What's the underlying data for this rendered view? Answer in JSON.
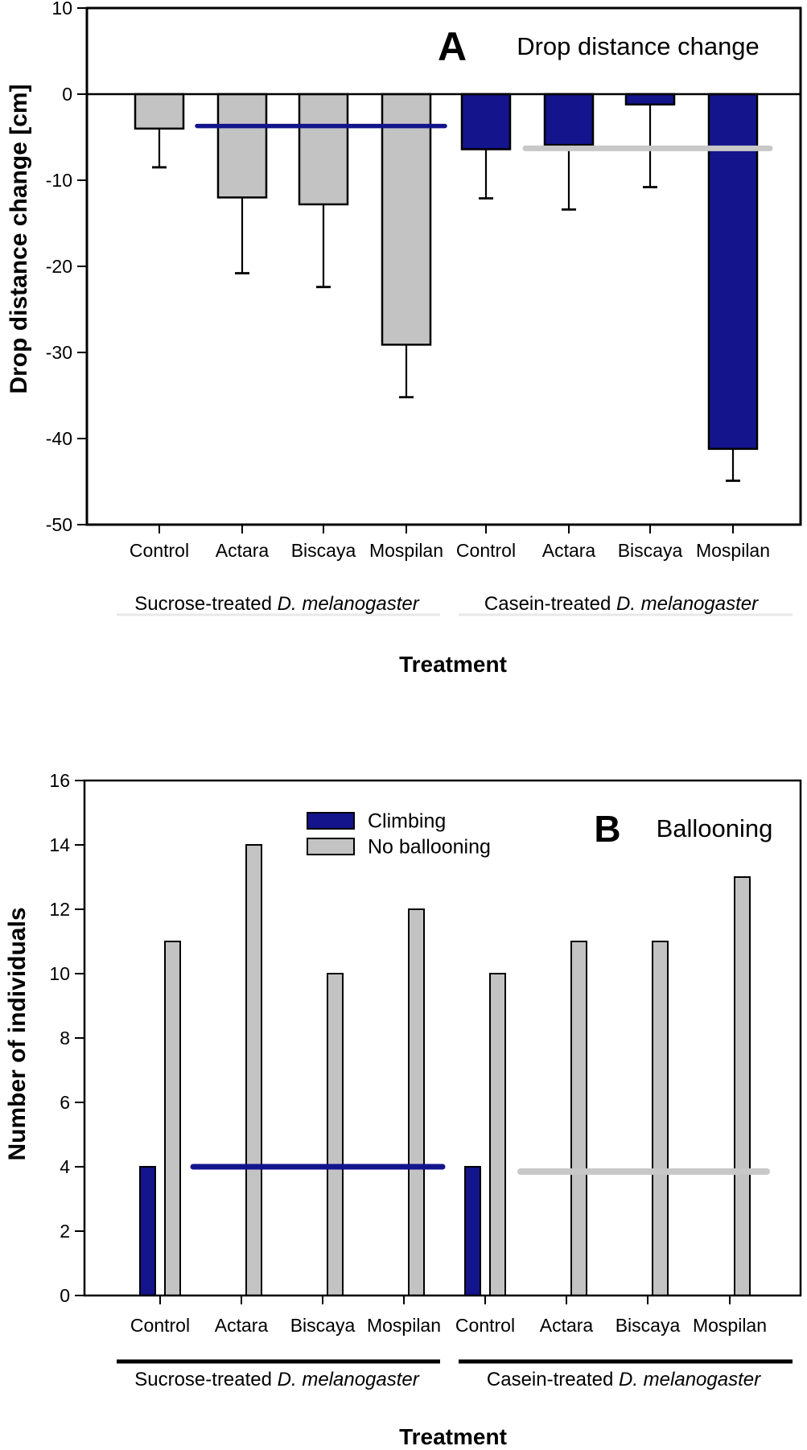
{
  "colors": {
    "navy": "#14148C",
    "gray_bar": "#C3C3C3",
    "gray_line": "#C8C8C8",
    "black": "#000000",
    "faint_rule": "#E8E8E8"
  },
  "chart_data": [
    {
      "type": "bar",
      "panel_label": "A",
      "title": "Drop distance change",
      "ylabel": "Drop distance change [cm]",
      "xlabel": "Treatment",
      "ylim": [
        -50,
        10
      ],
      "yticks": [
        10,
        0,
        -10,
        -20,
        -30,
        -40,
        -50
      ],
      "grid": false,
      "categories": [
        "Control",
        "Actara",
        "Biscaya",
        "Mospilan",
        "Control",
        "Actara",
        "Biscaya",
        "Mospilan"
      ],
      "groups": [
        {
          "prefix": "Sucrose-treated",
          "italic": "D. melanogaster"
        },
        {
          "prefix": "Casein-treated",
          "italic": "D. melanogaster"
        }
      ],
      "series": [
        {
          "name": "Drop distance change",
          "values": [
            -4.0,
            -12.0,
            -12.8,
            -29.1,
            -6.4,
            -5.9,
            -1.2,
            -41.2
          ],
          "error_to": [
            -8.5,
            -20.8,
            -22.4,
            -35.2,
            -12.1,
            -13.4,
            -10.8,
            -44.9
          ],
          "colors_by_bar": [
            "gray",
            "gray",
            "gray",
            "gray",
            "navy",
            "navy",
            "navy",
            "navy"
          ]
        }
      ],
      "reference_lines": [
        {
          "color": "navy",
          "y": -3.7,
          "span_categories": [
            0,
            3
          ]
        },
        {
          "color": "gray",
          "y": -6.3,
          "span_categories": [
            4,
            7
          ]
        }
      ]
    },
    {
      "type": "bar",
      "panel_label": "B",
      "title": "Ballooning",
      "ylabel": "Number of individuals",
      "xlabel": "Treatment",
      "ylim": [
        0,
        16
      ],
      "yticks": [
        16,
        14,
        12,
        10,
        8,
        6,
        4,
        2,
        0
      ],
      "grid": false,
      "legend_position": "top-center-inside",
      "categories": [
        "Control",
        "Actara",
        "Biscaya",
        "Mospilan",
        "Control",
        "Actara",
        "Biscaya",
        "Mospilan"
      ],
      "groups": [
        {
          "prefix": "Sucrose-treated",
          "italic": "D. melanogaster"
        },
        {
          "prefix": "Casein-treated",
          "italic": "D. melanogaster"
        }
      ],
      "series": [
        {
          "name": "Climbing",
          "color": "navy",
          "values": [
            4,
            0,
            0,
            0,
            4,
            0,
            0,
            0
          ]
        },
        {
          "name": "No ballooning",
          "color": "gray",
          "values": [
            11,
            14,
            10,
            12,
            10,
            11,
            11,
            13
          ]
        }
      ],
      "reference_lines": [
        {
          "color": "navy",
          "y": 4.0,
          "span_categories": [
            0,
            3
          ]
        },
        {
          "color": "gray",
          "y": 3.85,
          "span_categories": [
            4,
            7
          ]
        }
      ]
    }
  ]
}
